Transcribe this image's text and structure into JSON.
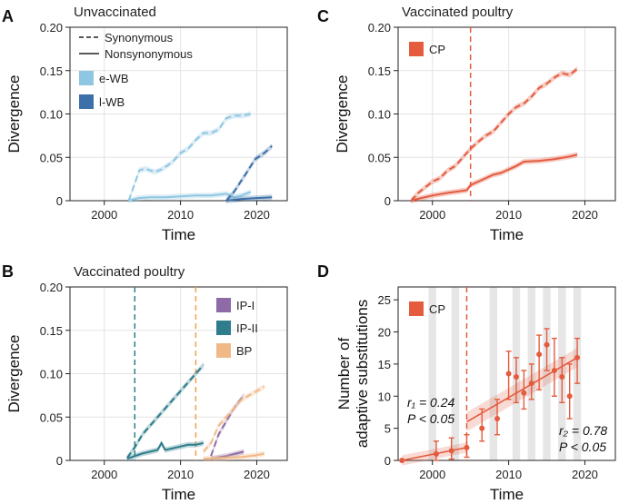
{
  "chart_data": [
    {
      "panel": "A",
      "type": "line",
      "title": "Unvaccinated",
      "xlabel": "Time",
      "ylabel": "Divergence",
      "xlim": [
        1995.5,
        2024
      ],
      "ylim": [
        0,
        0.2
      ],
      "xticks": [
        2000,
        2010,
        2020
      ],
      "yticks": [
        0,
        0.05,
        0.1,
        0.15,
        0.2
      ],
      "xticklabels": [
        "2000",
        "2010",
        "2020"
      ],
      "yticklabels": [
        "0",
        "0.05",
        "0.10",
        "0.15",
        "0.20"
      ],
      "grid": true,
      "legend": {
        "position": "top-left",
        "style_entries": [
          "Synonymous",
          "Nonsynonymous"
        ],
        "entries": [
          "e-WB",
          "l-WB"
        ]
      },
      "series": [
        {
          "name": "e-WB",
          "color": "#8fc6e2",
          "dash": true,
          "x": [
            2003.2,
            2004,
            2004.6,
            2005.4,
            2006.6,
            2007.5,
            2008.2,
            2009,
            2010,
            2011,
            2012,
            2013,
            2014,
            2015,
            2016,
            2017,
            2018.2,
            2019.2
          ],
          "y": [
            0,
            0.02,
            0.035,
            0.037,
            0.033,
            0.036,
            0.04,
            0.045,
            0.055,
            0.06,
            0.07,
            0.078,
            0.078,
            0.082,
            0.095,
            0.098,
            0.098,
            0.1
          ]
        },
        {
          "name": "e-WB",
          "color": "#8fc6e2",
          "dash": false,
          "x": [
            2003.2,
            2004.5,
            2006,
            2008,
            2010,
            2012,
            2014,
            2016,
            2017,
            2018,
            2019.2
          ],
          "y": [
            0,
            0.003,
            0.004,
            0.004,
            0.005,
            0.006,
            0.006,
            0.008,
            0.004,
            0.006,
            0.01
          ]
        },
        {
          "name": "l-WB",
          "color": "#3d6fa8",
          "dash": true,
          "x": [
            2016,
            2017,
            2018.5,
            2019.8,
            2021,
            2022
          ],
          "y": [
            0,
            0.01,
            0.03,
            0.048,
            0.055,
            0.063
          ]
        },
        {
          "name": "l-WB",
          "color": "#3d6fa8",
          "dash": false,
          "x": [
            2016,
            2018,
            2020,
            2022
          ],
          "y": [
            0,
            0.002,
            0.003,
            0.004
          ]
        }
      ]
    },
    {
      "panel": "B",
      "type": "line",
      "title": "Vaccinated poultry",
      "xlabel": "Time",
      "ylabel": "Divergence",
      "xlim": [
        1995.5,
        2024
      ],
      "ylim": [
        0,
        0.2
      ],
      "xticks": [
        2000,
        2010,
        2020
      ],
      "yticks": [
        0,
        0.05,
        0.1,
        0.15,
        0.2
      ],
      "xticklabels": [
        "2000",
        "2010",
        "2020"
      ],
      "yticklabels": [
        "0",
        "0.05",
        "0.10",
        "0.15",
        "0.20"
      ],
      "grid": true,
      "legend": {
        "position": "top-right",
        "entries": [
          "IP-I",
          "IP-II",
          "BP"
        ]
      },
      "vlines": [
        {
          "x": 2004,
          "color": "#2f7d8c"
        },
        {
          "x": 2012,
          "color": "#f0a050"
        }
      ],
      "series": [
        {
          "name": "IP-II",
          "color": "#2f7d8c",
          "dash": true,
          "x": [
            2003,
            2004,
            2005,
            2006,
            2007,
            2008,
            2009,
            2010,
            2011,
            2012,
            2013
          ],
          "y": [
            0.003,
            0.015,
            0.03,
            0.04,
            0.05,
            0.06,
            0.07,
            0.08,
            0.09,
            0.1,
            0.11
          ]
        },
        {
          "name": "IP-II",
          "color": "#2f7d8c",
          "dash": false,
          "x": [
            2003,
            2004,
            2005,
            2006,
            2007,
            2007.5,
            2008,
            2009,
            2010,
            2011,
            2012,
            2013
          ],
          "y": [
            0.002,
            0.005,
            0.008,
            0.01,
            0.012,
            0.02,
            0.012,
            0.014,
            0.016,
            0.018,
            0.018,
            0.02
          ]
        },
        {
          "name": "IP-I",
          "color": "#8e6aa6",
          "dash": true,
          "x": [
            2014,
            2015,
            2016,
            2017,
            2018.3
          ],
          "y": [
            0.005,
            0.03,
            0.045,
            0.06,
            0.075
          ]
        },
        {
          "name": "IP-I",
          "color": "#8e6aa6",
          "dash": false,
          "x": [
            2014,
            2016,
            2018.3
          ],
          "y": [
            0.002,
            0.005,
            0.01
          ]
        },
        {
          "name": "BP",
          "color": "#f1b988",
          "dash": true,
          "x": [
            2013,
            2014,
            2015,
            2016,
            2017,
            2018,
            2019,
            2020,
            2021
          ],
          "y": [
            0.01,
            0.02,
            0.04,
            0.05,
            0.06,
            0.07,
            0.075,
            0.08,
            0.085
          ]
        },
        {
          "name": "BP",
          "color": "#f1b988",
          "dash": false,
          "x": [
            2013,
            2016,
            2018,
            2020,
            2021
          ],
          "y": [
            0.002,
            0.003,
            0.004,
            0.006,
            0.008
          ]
        }
      ]
    },
    {
      "panel": "C",
      "type": "line",
      "title": "Vaccinated poultry",
      "xlabel": "Time",
      "ylabel": "Divergence",
      "xlim": [
        1995.5,
        2024
      ],
      "ylim": [
        0,
        0.2
      ],
      "xticks": [
        2000,
        2010,
        2020
      ],
      "yticks": [
        0,
        0.05,
        0.1,
        0.15,
        0.2
      ],
      "xticklabels": [
        "2000",
        "2010",
        "2020"
      ],
      "yticklabels": [
        "0",
        "0.05",
        "0.10",
        "0.15",
        "0.20"
      ],
      "grid": true,
      "legend": {
        "position": "top-left",
        "entries": [
          "CP"
        ]
      },
      "vlines": [
        {
          "x": 2005,
          "color": "#e45b3e"
        }
      ],
      "series": [
        {
          "name": "CP",
          "color": "#e45b3e",
          "dash": true,
          "x": [
            1997.2,
            1998,
            1999,
            2000,
            2001,
            2002,
            2003,
            2004,
            2005,
            2006,
            2007,
            2008,
            2009,
            2010,
            2011,
            2012,
            2013,
            2014,
            2015,
            2016,
            2017,
            2018,
            2019
          ],
          "y": [
            0,
            0.008,
            0.015,
            0.022,
            0.026,
            0.035,
            0.04,
            0.05,
            0.06,
            0.068,
            0.075,
            0.08,
            0.09,
            0.1,
            0.108,
            0.112,
            0.12,
            0.13,
            0.135,
            0.142,
            0.147,
            0.145,
            0.152
          ]
        },
        {
          "name": "CP",
          "color": "#e45b3e",
          "dash": false,
          "x": [
            1997.2,
            1998,
            2000,
            2002,
            2004.5,
            2005,
            2006,
            2008,
            2009,
            2010,
            2011,
            2012,
            2014,
            2016,
            2018,
            2019
          ],
          "y": [
            0,
            0.002,
            0.006,
            0.009,
            0.012,
            0.018,
            0.022,
            0.03,
            0.032,
            0.036,
            0.04,
            0.045,
            0.046,
            0.048,
            0.051,
            0.053
          ]
        }
      ]
    },
    {
      "panel": "D",
      "type": "scatter",
      "xlabel": "Time",
      "ylabel": "Number of adaptive substitutions",
      "xlim": [
        1995.5,
        2024
      ],
      "ylim": [
        0,
        27
      ],
      "xticks": [
        2000,
        2010,
        2020
      ],
      "yticks": [
        0,
        5,
        10,
        15,
        20,
        25
      ],
      "xticklabels": [
        "2000",
        "2010",
        "2020"
      ],
      "yticklabels": [
        "0",
        "5",
        "10",
        "15",
        "20",
        "25"
      ],
      "legend": {
        "position": "top-left",
        "entries": [
          "CP"
        ]
      },
      "vlines": [
        {
          "x": 2004.5,
          "color": "#e45b3e"
        }
      ],
      "shaded_years": [
        2000,
        2003,
        2008,
        2011,
        2013,
        2015,
        2017,
        2019
      ],
      "points": [
        {
          "x": 1996,
          "y": 0,
          "lo": 0,
          "hi": 0
        },
        {
          "x": 2000.5,
          "y": 1,
          "lo": 0,
          "hi": 3
        },
        {
          "x": 2002.5,
          "y": 1.5,
          "lo": 0.2,
          "hi": 3.5
        },
        {
          "x": 2004.5,
          "y": 2,
          "lo": 0.5,
          "hi": 4
        },
        {
          "x": 2006.5,
          "y": 5,
          "lo": 3,
          "hi": 8
        },
        {
          "x": 2008.5,
          "y": 6.5,
          "lo": 4,
          "hi": 9.5
        },
        {
          "x": 2010,
          "y": 13.5,
          "lo": 9.5,
          "hi": 17
        },
        {
          "x": 2011,
          "y": 13,
          "lo": 9,
          "hi": 16
        },
        {
          "x": 2012,
          "y": 10.5,
          "lo": 8,
          "hi": 14
        },
        {
          "x": 2013,
          "y": 12,
          "lo": 9.5,
          "hi": 15
        },
        {
          "x": 2014,
          "y": 16.5,
          "lo": 11,
          "hi": 19.5
        },
        {
          "x": 2015,
          "y": 18,
          "lo": 14,
          "hi": 20.5
        },
        {
          "x": 2016,
          "y": 14,
          "lo": 10,
          "hi": 19
        },
        {
          "x": 2017,
          "y": 13,
          "lo": 9,
          "hi": 16
        },
        {
          "x": 2018,
          "y": 10,
          "lo": 6.5,
          "hi": 15
        },
        {
          "x": 2019,
          "y": 16,
          "lo": 12,
          "hi": 19
        }
      ],
      "fits": [
        {
          "x": [
            1996,
            2004.5
          ],
          "y": [
            0,
            2
          ],
          "band": 0.8
        },
        {
          "x": [
            2004.5,
            2019
          ],
          "y": [
            6,
            16
          ],
          "band": 1.5
        }
      ],
      "annotations": {
        "r1_label": "r₁ = 0.24",
        "p1_label": "P < 0.05",
        "r2_label": "r₂ = 0.78",
        "p2_label": "P < 0.05"
      },
      "color": "#e45b3e"
    }
  ],
  "panel_letters": [
    "A",
    "B",
    "C",
    "D"
  ]
}
